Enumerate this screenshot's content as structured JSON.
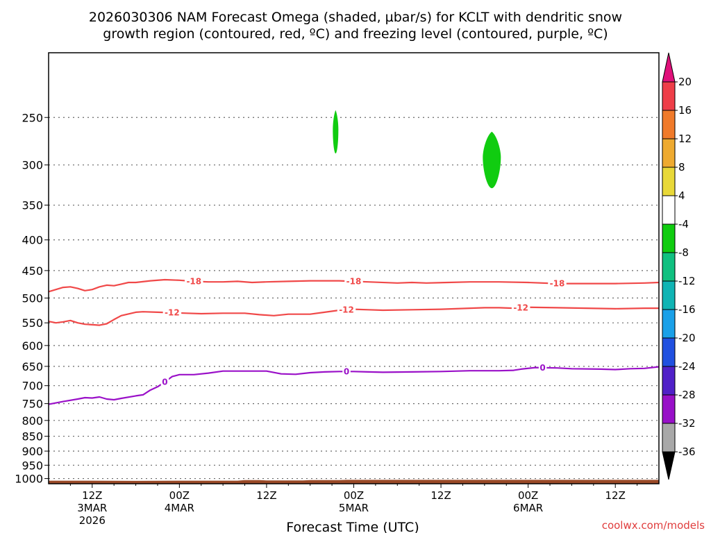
{
  "title": {
    "line1": "2026030306 NAM Forecast Omega (shaded, µbar/s) for KCLT with dendritic snow",
    "line2": "growth region (contoured, red, ºC) and freezing level (contoured, purple, ºC)"
  },
  "watermark": "coolwx.com/models",
  "colors": {
    "dgz": "#f04848",
    "freezing": "#9a10c8",
    "terrain": "#9a4a28",
    "grid": "#666666",
    "watermark": "#e03c3c"
  },
  "chart_data": {
    "type": "time-height",
    "xlabel": "Forecast Time (UTC)",
    "x_range_hours": [
      0,
      84
    ],
    "x_ticks": [
      {
        "hour": 6,
        "label": "12Z",
        "sub": [
          "3MAR",
          "2026"
        ]
      },
      {
        "hour": 18,
        "label": "00Z",
        "sub": [
          "4MAR"
        ]
      },
      {
        "hour": 30,
        "label": "12Z",
        "sub": []
      },
      {
        "hour": 42,
        "label": "00Z",
        "sub": [
          "5MAR"
        ]
      },
      {
        "hour": 54,
        "label": "12Z",
        "sub": []
      },
      {
        "hour": 66,
        "label": "00Z",
        "sub": [
          "6MAR"
        ]
      },
      {
        "hour": 78,
        "label": "12Z",
        "sub": []
      }
    ],
    "y_levels_hpa": [
      250,
      300,
      350,
      400,
      450,
      500,
      550,
      600,
      650,
      700,
      750,
      800,
      850,
      900,
      950,
      1000
    ],
    "y_range_hpa": [
      195,
      1020
    ],
    "colorbar": {
      "labels": [
        "20",
        "16",
        "12",
        "8",
        "4",
        "-4",
        "-8",
        "-12",
        "-16",
        "-20",
        "-24",
        "-28",
        "-32",
        "-36"
      ],
      "colors": [
        "#ee3e48",
        "#f07a2a",
        "#eeaa30",
        "#e8d838",
        "#ffffff",
        "#10cc10",
        "#10c080",
        "#10b4b4",
        "#1aa0e8",
        "#2050e0",
        "#5020c8",
        "#9810c8",
        "#a8a8a8"
      ],
      "top_arrow": "#e0107a",
      "bottom_arrow": "#000000"
    },
    "omega_shaded": [
      {
        "range": "-8 to -4",
        "color": "#10cc10",
        "hour_center": 39.5,
        "p_top": 243,
        "p_bottom": 287
      },
      {
        "range": "-8 to -4",
        "color": "#10cc10",
        "hour_center": 61.0,
        "p_top": 264,
        "p_bottom": 328
      }
    ],
    "contours": [
      {
        "name": "-18",
        "color": "#f04848",
        "points": [
          [
            0,
            488
          ],
          [
            2,
            480
          ],
          [
            3,
            479
          ],
          [
            4,
            482
          ],
          [
            5,
            486
          ],
          [
            6,
            484
          ],
          [
            7,
            479
          ],
          [
            8,
            476
          ],
          [
            9,
            477
          ],
          [
            10,
            474
          ],
          [
            11,
            471
          ],
          [
            12,
            471
          ],
          [
            14,
            468
          ],
          [
            16,
            466
          ],
          [
            18,
            467
          ],
          [
            20,
            469
          ],
          [
            22,
            470
          ],
          [
            24,
            470
          ],
          [
            26,
            469
          ],
          [
            28,
            471
          ],
          [
            30,
            470
          ],
          [
            33,
            469
          ],
          [
            36,
            468
          ],
          [
            40,
            468
          ],
          [
            44,
            470
          ],
          [
            48,
            472
          ],
          [
            50,
            471
          ],
          [
            52,
            472
          ],
          [
            55,
            471
          ],
          [
            58,
            470
          ],
          [
            62,
            470
          ],
          [
            66,
            471
          ],
          [
            70,
            473
          ],
          [
            74,
            473
          ],
          [
            78,
            473
          ],
          [
            82,
            472
          ],
          [
            84,
            471
          ]
        ],
        "labels": [
          {
            "hour": 20,
            "text": "-18"
          },
          {
            "hour": 42,
            "text": "-18"
          },
          {
            "hour": 70,
            "text": "-18"
          }
        ]
      },
      {
        "name": "-12",
        "color": "#f04848",
        "points": [
          [
            0,
            547
          ],
          [
            1,
            550
          ],
          [
            2,
            548
          ],
          [
            3,
            545
          ],
          [
            4,
            550
          ],
          [
            5,
            553
          ],
          [
            6,
            554
          ],
          [
            7,
            555
          ],
          [
            8,
            552
          ],
          [
            9,
            543
          ],
          [
            10,
            535
          ],
          [
            12,
            528
          ],
          [
            13,
            527
          ],
          [
            15,
            528
          ],
          [
            17,
            529
          ],
          [
            19,
            530
          ],
          [
            21,
            531
          ],
          [
            24,
            530
          ],
          [
            27,
            530
          ],
          [
            29,
            533
          ],
          [
            31,
            535
          ],
          [
            33,
            532
          ],
          [
            36,
            532
          ],
          [
            38,
            528
          ],
          [
            40,
            524
          ],
          [
            42,
            522
          ],
          [
            44,
            523
          ],
          [
            46,
            524
          ],
          [
            50,
            523
          ],
          [
            54,
            522
          ],
          [
            58,
            520
          ],
          [
            60,
            519
          ],
          [
            62,
            519
          ],
          [
            64,
            520
          ],
          [
            66,
            518
          ],
          [
            70,
            519
          ],
          [
            74,
            520
          ],
          [
            78,
            521
          ],
          [
            82,
            520
          ],
          [
            84,
            520
          ]
        ],
        "labels": [
          {
            "hour": 17,
            "text": "-12"
          },
          {
            "hour": 41,
            "text": "-12"
          },
          {
            "hour": 65,
            "text": "-12"
          }
        ]
      },
      {
        "name": "0",
        "color": "#9a10c8",
        "points": [
          [
            0,
            752
          ],
          [
            2,
            744
          ],
          [
            4,
            737
          ],
          [
            5,
            733
          ],
          [
            6,
            734
          ],
          [
            7,
            731
          ],
          [
            8,
            737
          ],
          [
            9,
            739
          ],
          [
            10,
            735
          ],
          [
            12,
            728
          ],
          [
            13,
            725
          ],
          [
            14,
            712
          ],
          [
            15,
            703
          ],
          [
            16,
            690
          ],
          [
            17,
            676
          ],
          [
            18,
            671
          ],
          [
            20,
            671
          ],
          [
            22,
            667
          ],
          [
            24,
            662
          ],
          [
            27,
            662
          ],
          [
            30,
            662
          ],
          [
            32,
            669
          ],
          [
            34,
            670
          ],
          [
            36,
            666
          ],
          [
            38,
            664
          ],
          [
            40,
            663
          ],
          [
            42,
            663
          ],
          [
            44,
            664
          ],
          [
            46,
            665
          ],
          [
            50,
            664
          ],
          [
            54,
            663
          ],
          [
            58,
            661
          ],
          [
            62,
            661
          ],
          [
            64,
            660
          ],
          [
            65,
            657
          ],
          [
            67,
            653
          ],
          [
            70,
            654
          ],
          [
            72,
            656
          ],
          [
            76,
            657
          ],
          [
            78,
            658
          ],
          [
            80,
            656
          ],
          [
            82,
            655
          ],
          [
            84,
            651
          ]
        ],
        "labels": [
          {
            "hour": 16,
            "text": "0"
          },
          {
            "hour": 41,
            "text": "0"
          },
          {
            "hour": 68,
            "text": "0"
          }
        ]
      }
    ],
    "terrain": {
      "color": "#9a4a28",
      "points": [
        [
          0,
          1008
        ],
        [
          6,
          1008
        ],
        [
          12,
          1009
        ],
        [
          18,
          1008
        ],
        [
          26,
          1008
        ],
        [
          27,
          1006
        ],
        [
          29,
          1006
        ],
        [
          30,
          1007
        ],
        [
          35,
          1007
        ],
        [
          36,
          1006
        ],
        [
          40,
          1006
        ],
        [
          41,
          1005
        ],
        [
          84,
          1005
        ]
      ]
    }
  }
}
